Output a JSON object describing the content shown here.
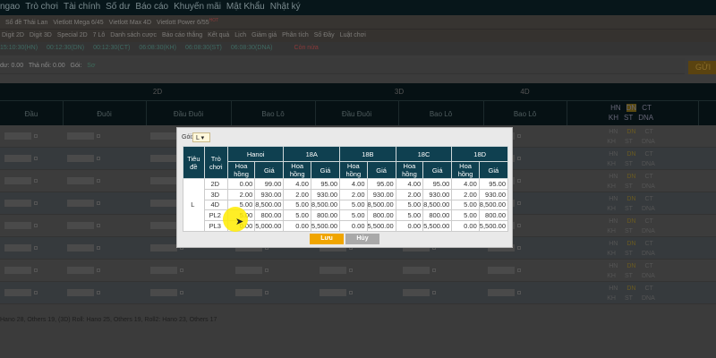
{
  "nav": [
    "ngao",
    "Trò chơi",
    "Tài chính",
    "Số dư",
    "Báo cáo",
    "Khuyến mãi",
    "Mật Khẩu",
    "Nhật ký"
  ],
  "lotteries": [
    "Sổ đề Thái Lan",
    "Vietlott Mega 6/45",
    "Vietlott Max 4D",
    "Vietlott Power 6/55"
  ],
  "hot_badge": "HOT",
  "menu": [
    "Digit 2D",
    "Digit 3D",
    "Special 2D",
    "7 Lô",
    "Danh sách cược",
    "Báo cáo thắng",
    "Kết quả",
    "Lịch",
    "Giảm giá",
    "Phân tích",
    "Số Đầy",
    "Luật chơi"
  ],
  "times": [
    "15:10:30(HN)",
    "00:12:30(DN)",
    "00:12:30(CT)",
    "06:08:30(KH)",
    "06:08:30(ST)",
    "06:08:30(DNA)"
  ],
  "times_note": "Còn nửa",
  "balance": {
    "credit": "dư: 0.00",
    "bet": "Thả nổi: 0.00",
    "pack_label": "Gói:",
    "pack_value": "Sơ",
    "button": "GỬI"
  },
  "groups": [
    "2D",
    "3D",
    "4D"
  ],
  "columns": [
    "Đầu",
    "Đuôi",
    "Đầu Đuôi",
    "Bao Lô",
    "Đầu Đuôi",
    "Bao Lô",
    "Bao Lô"
  ],
  "regions": [
    "HN",
    "DN",
    "CT",
    "KH",
    "ST",
    "DNA"
  ],
  "footer": "Hano 28, Others 19, (3D) Roll: Hano 25, Others 19, Roll2: Hano 23, Others 17",
  "modal": {
    "pack_label": "Gói:",
    "pack_value": "L",
    "headers": {
      "title": "Tiêu đề",
      "game": "Trò chơi",
      "commission": "Hoa hồng",
      "price": "Giá"
    },
    "regions": [
      "Hanoi",
      "18A",
      "18B",
      "18C",
      "18D"
    ],
    "group": "L",
    "rows": [
      {
        "game": "2D",
        "vals": [
          "0.00",
          "99.00",
          "4.00",
          "95.00",
          "4.00",
          "95.00",
          "4.00",
          "95.00",
          "4.00",
          "95.00"
        ]
      },
      {
        "game": "3D",
        "vals": [
          "2.00",
          "930.00",
          "2.00",
          "930.00",
          "2.00",
          "930.00",
          "2.00",
          "930.00",
          "2.00",
          "930.00"
        ]
      },
      {
        "game": "4D",
        "vals": [
          "5.00",
          "8,500.00",
          "5.00",
          "8,500.00",
          "5.00",
          "8,500.00",
          "5.00",
          "8,500.00",
          "5.00",
          "8,500.00"
        ]
      },
      {
        "game": "PL2",
        "vals": [
          "5.00",
          "800.00",
          "5.00",
          "800.00",
          "5.00",
          "800.00",
          "5.00",
          "800.00",
          "5.00",
          "800.00"
        ]
      },
      {
        "game": "PL3",
        "vals": [
          "0.00",
          "5,000.00",
          "0.00",
          "5,500.00",
          "0.00",
          "5,500.00",
          "0.00",
          "5,500.00",
          "0.00",
          "5,500.00"
        ]
      }
    ],
    "save": "Lưu",
    "cancel": "Hủy",
    "colors": {
      "header": "#0f4050",
      "save": "#f0a500",
      "cancel": "#a9a9a9"
    }
  }
}
